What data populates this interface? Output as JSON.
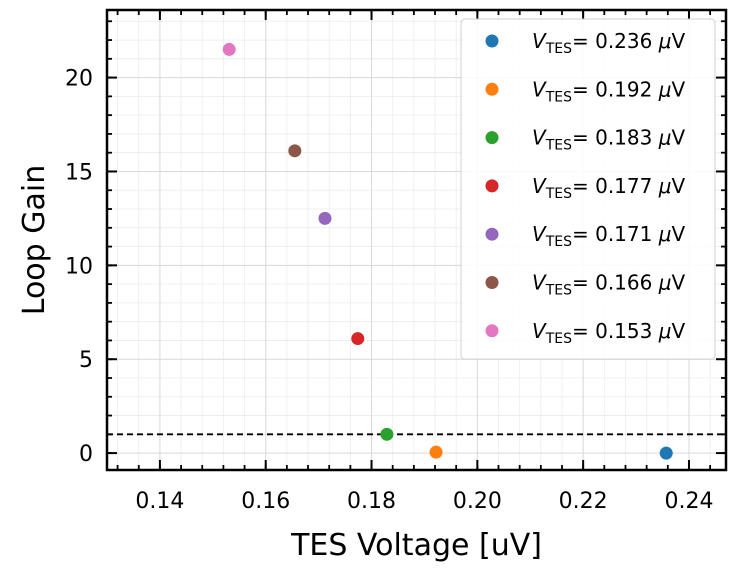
{
  "chart_data": {
    "type": "scatter",
    "title": "",
    "xlabel": "TES Voltage [uV]",
    "ylabel": "Loop Gain",
    "xlim": [
      0.13,
      0.247
    ],
    "ylim": [
      -0.9,
      23.6
    ],
    "x_ticks": [
      0.14,
      0.16,
      0.18,
      0.2,
      0.22,
      0.24
    ],
    "x_tick_labels": [
      "0.14",
      "0.16",
      "0.18",
      "0.20",
      "0.22",
      "0.24"
    ],
    "y_ticks": [
      0,
      5,
      10,
      15,
      20
    ],
    "y_tick_labels": [
      "0",
      "5",
      "10",
      "15",
      "20"
    ],
    "grid": true,
    "legend_position": "top-right",
    "reference_line": {
      "y": 1,
      "style": "dashed",
      "color": "#000000"
    },
    "series": [
      {
        "name": "V_TES = 0.236 μV",
        "sym": "V",
        "sub": "TES",
        "value_text": "= 0.236",
        "unit_mu": "μ",
        "unit_rest": "V",
        "x": 0.2357,
        "y": 0.0,
        "color": "#1f77b4"
      },
      {
        "name": "V_TES = 0.192 μV",
        "sym": "V",
        "sub": "TES",
        "value_text": "= 0.192",
        "unit_mu": "μ",
        "unit_rest": "V",
        "x": 0.1922,
        "y": 0.05,
        "color": "#ff7f0e"
      },
      {
        "name": "V_TES = 0.183 μV",
        "sym": "V",
        "sub": "TES",
        "value_text": "= 0.183",
        "unit_mu": "μ",
        "unit_rest": "V",
        "x": 0.1829,
        "y": 1.0,
        "color": "#2ca02c"
      },
      {
        "name": "V_TES = 0.177 μV",
        "sym": "V",
        "sub": "TES",
        "value_text": "= 0.177",
        "unit_mu": "μ",
        "unit_rest": "V",
        "x": 0.1774,
        "y": 6.1,
        "color": "#d62728"
      },
      {
        "name": "V_TES = 0.171 μV",
        "sym": "V",
        "sub": "TES",
        "value_text": "= 0.171",
        "unit_mu": "μ",
        "unit_rest": "V",
        "x": 0.1712,
        "y": 12.5,
        "color": "#9467bd"
      },
      {
        "name": "V_TES = 0.166 μV",
        "sym": "V",
        "sub": "TES",
        "value_text": "= 0.166",
        "unit_mu": "μ",
        "unit_rest": "V",
        "x": 0.1655,
        "y": 16.1,
        "color": "#8c564b"
      },
      {
        "name": "V_TES = 0.153 μV",
        "sym": "V",
        "sub": "TES",
        "value_text": "= 0.153",
        "unit_mu": "μ",
        "unit_rest": "V",
        "x": 0.1531,
        "y": 21.5,
        "color": "#e377c2"
      }
    ]
  }
}
